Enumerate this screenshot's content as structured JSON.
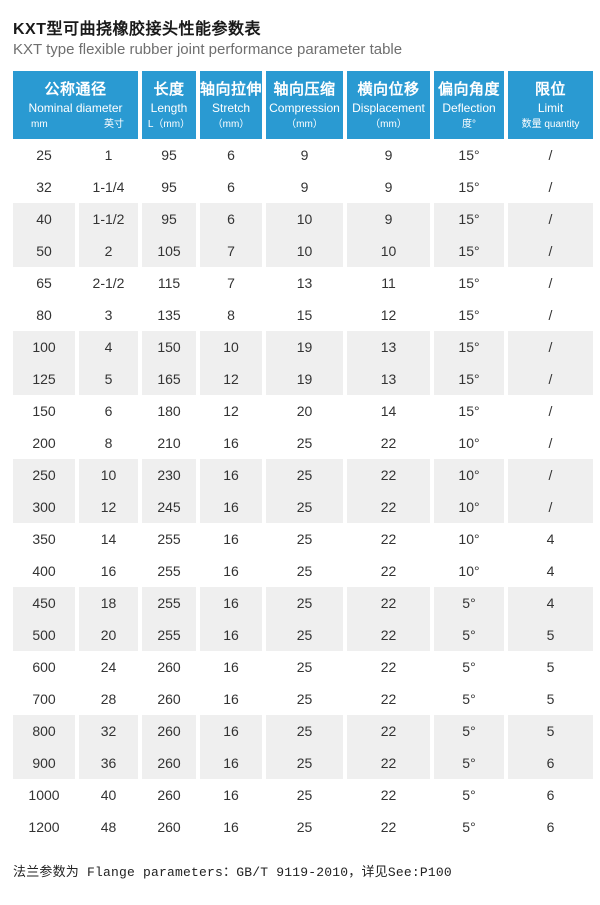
{
  "page": {
    "title_zh": "KXT型可曲挠橡胶接头性能参数表",
    "title_en": "KXT type flexible rubber joint performance parameter table",
    "footer": "法兰参数为 Flange parameters：GB/T 9119-2010，详见See:P100"
  },
  "colors": {
    "header_bg": "#2a9ad2",
    "row_alt_bg": "#efefef",
    "header_text": "#ffffff",
    "body_text": "#333333"
  },
  "table": {
    "headers": [
      {
        "zh": "公称通径",
        "en": "Nominal diameter",
        "sub_left": "mm",
        "sub_right": "英寸"
      },
      {
        "zh": "长度",
        "en": "Length",
        "sub": "L（mm）"
      },
      {
        "zh": "轴向拉伸",
        "en": "Stretch",
        "sub": "（mm）"
      },
      {
        "zh": "轴向压缩",
        "en": "Compression",
        "sub": "（mm）"
      },
      {
        "zh": "横向位移",
        "en": "Displacement",
        "sub": "（mm）"
      },
      {
        "zh": "偏向角度",
        "en": "Deflection",
        "sub": "度°"
      },
      {
        "zh": "限位",
        "en": "Limit",
        "sub": "数量 quantity"
      }
    ],
    "rows": [
      [
        "25",
        "1",
        "95",
        "6",
        "9",
        "9",
        "15°",
        "/"
      ],
      [
        "32",
        "1-1/4",
        "95",
        "6",
        "9",
        "9",
        "15°",
        "/"
      ],
      [
        "40",
        "1-1/2",
        "95",
        "6",
        "10",
        "9",
        "15°",
        "/"
      ],
      [
        "50",
        "2",
        "105",
        "7",
        "10",
        "10",
        "15°",
        "/"
      ],
      [
        "65",
        "2-1/2",
        "115",
        "7",
        "13",
        "11",
        "15°",
        "/"
      ],
      [
        "80",
        "3",
        "135",
        "8",
        "15",
        "12",
        "15°",
        "/"
      ],
      [
        "100",
        "4",
        "150",
        "10",
        "19",
        "13",
        "15°",
        "/"
      ],
      [
        "125",
        "5",
        "165",
        "12",
        "19",
        "13",
        "15°",
        "/"
      ],
      [
        "150",
        "6",
        "180",
        "12",
        "20",
        "14",
        "15°",
        "/"
      ],
      [
        "200",
        "8",
        "210",
        "16",
        "25",
        "22",
        "10°",
        "/"
      ],
      [
        "250",
        "10",
        "230",
        "16",
        "25",
        "22",
        "10°",
        "/"
      ],
      [
        "300",
        "12",
        "245",
        "16",
        "25",
        "22",
        "10°",
        "/"
      ],
      [
        "350",
        "14",
        "255",
        "16",
        "25",
        "22",
        "10°",
        "4"
      ],
      [
        "400",
        "16",
        "255",
        "16",
        "25",
        "22",
        "10°",
        "4"
      ],
      [
        "450",
        "18",
        "255",
        "16",
        "25",
        "22",
        "5°",
        "4"
      ],
      [
        "500",
        "20",
        "255",
        "16",
        "25",
        "22",
        "5°",
        "5"
      ],
      [
        "600",
        "24",
        "260",
        "16",
        "25",
        "22",
        "5°",
        "5"
      ],
      [
        "700",
        "28",
        "260",
        "16",
        "25",
        "22",
        "5°",
        "5"
      ],
      [
        "800",
        "32",
        "260",
        "16",
        "25",
        "22",
        "5°",
        "5"
      ],
      [
        "900",
        "36",
        "260",
        "16",
        "25",
        "22",
        "5°",
        "6"
      ],
      [
        "1000",
        "40",
        "260",
        "16",
        "25",
        "22",
        "5°",
        "6"
      ],
      [
        "1200",
        "48",
        "260",
        "16",
        "25",
        "22",
        "5°",
        "6"
      ]
    ]
  }
}
